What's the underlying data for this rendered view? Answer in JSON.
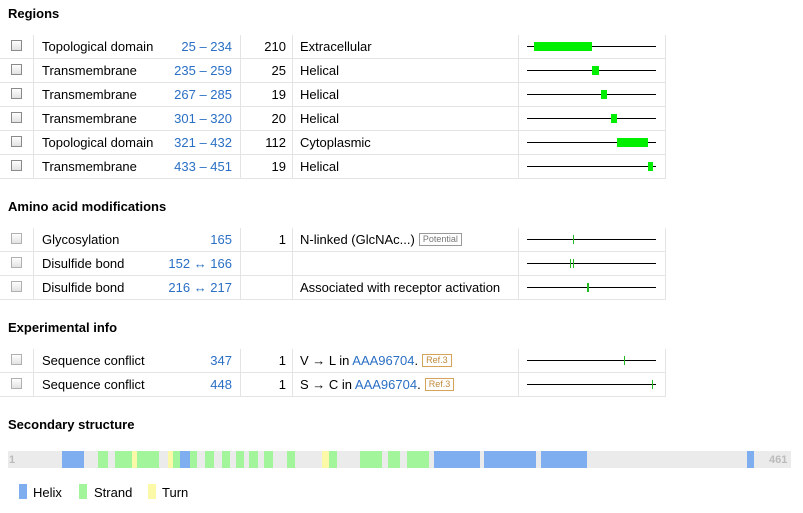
{
  "sections": {
    "regions": "Regions",
    "modifications": "Amino acid modifications",
    "experimental": "Experimental info",
    "secondary": "Secondary structure"
  },
  "regions": [
    {
      "type": "Topological domain",
      "position": "25 – 234",
      "length": "210",
      "description": "Extracellular",
      "range": [
        25,
        234
      ]
    },
    {
      "type": "Transmembrane",
      "position": "235 – 259",
      "length": "25",
      "description": "Helical",
      "range": [
        235,
        259
      ]
    },
    {
      "type": "Transmembrane",
      "position": "267 – 285",
      "length": "19",
      "description": "Helical",
      "range": [
        267,
        285
      ]
    },
    {
      "type": "Transmembrane",
      "position": "301 – 320",
      "length": "20",
      "description": "Helical",
      "range": [
        301,
        320
      ]
    },
    {
      "type": "Topological domain",
      "position": "321 – 432",
      "length": "112",
      "description": "Cytoplasmic",
      "range": [
        321,
        432
      ]
    },
    {
      "type": "Transmembrane",
      "position": "433 – 451",
      "length": "19",
      "description": "Helical",
      "range": [
        433,
        451
      ]
    }
  ],
  "modifications": [
    {
      "type": "Glycosylation",
      "position": "165",
      "length": "1",
      "description": "N-linked (GlcNAc...)",
      "badge": "Potential",
      "sites": [
        165
      ]
    },
    {
      "type": "Disulfide bond",
      "position": "152 ↔ 166",
      "length": "",
      "description": "",
      "badge": "",
      "sites": [
        152,
        166
      ]
    },
    {
      "type": "Disulfide bond",
      "position": "216 ↔ 217",
      "length": "",
      "description": "Associated with receptor activation",
      "badge": "",
      "sites": [
        216,
        217
      ]
    }
  ],
  "experimental": [
    {
      "type": "Sequence conflict",
      "position": "347",
      "length": "1",
      "desc_prefix": "V → L in ",
      "desc_link": "AAA96704",
      "desc_suffix": ".",
      "badge": "Ref.3",
      "sites": [
        347
      ]
    },
    {
      "type": "Sequence conflict",
      "position": "448",
      "length": "1",
      "desc_prefix": "S → C in ",
      "desc_link": "AAA96704",
      "desc_suffix": ".",
      "badge": "Ref.3",
      "sites": [
        448
      ]
    }
  ],
  "sequence_length": 461,
  "secondary_structure": {
    "start_label": "1",
    "end_label": "461",
    "segments": [
      {
        "type": "helix",
        "start": 33,
        "end": 45
      },
      {
        "type": "strand",
        "start": 54,
        "end": 59
      },
      {
        "type": "strand",
        "start": 64,
        "end": 73
      },
      {
        "type": "turn",
        "start": 74,
        "end": 76
      },
      {
        "type": "strand",
        "start": 77,
        "end": 89
      },
      {
        "type": "turn",
        "start": 95,
        "end": 97
      },
      {
        "type": "strand",
        "start": 98,
        "end": 101
      },
      {
        "type": "helix",
        "start": 102,
        "end": 107
      },
      {
        "type": "strand",
        "start": 108,
        "end": 111
      },
      {
        "type": "strand",
        "start": 117,
        "end": 121
      },
      {
        "type": "strand",
        "start": 127,
        "end": 131
      },
      {
        "type": "strand",
        "start": 135,
        "end": 139
      },
      {
        "type": "strand",
        "start": 143,
        "end": 147
      },
      {
        "type": "strand",
        "start": 152,
        "end": 156
      },
      {
        "type": "strand",
        "start": 165,
        "end": 169
      },
      {
        "type": "turn",
        "start": 186,
        "end": 189
      },
      {
        "type": "strand",
        "start": 190,
        "end": 194
      },
      {
        "type": "strand",
        "start": 208,
        "end": 220
      },
      {
        "type": "strand",
        "start": 225,
        "end": 231
      },
      {
        "type": "strand",
        "start": 236,
        "end": 248
      },
      {
        "type": "helix",
        "start": 252,
        "end": 278
      },
      {
        "type": "helix",
        "start": 281,
        "end": 311
      },
      {
        "type": "helix",
        "start": 315,
        "end": 341
      },
      {
        "type": "helix",
        "start": 436,
        "end": 439
      }
    ]
  },
  "legend": [
    {
      "label": "Helix",
      "color": "#7eaef0"
    },
    {
      "label": "Strand",
      "color": "#a2f59a"
    },
    {
      "label": "Turn",
      "color": "#fbf8a8"
    }
  ],
  "colors": {
    "feature_bar": "#00ee00",
    "site_tick": "#22bb22",
    "helix": "#7eaef0",
    "strand": "#a2f59a",
    "turn": "#fbf8a8",
    "link": "#2a6fc4"
  }
}
